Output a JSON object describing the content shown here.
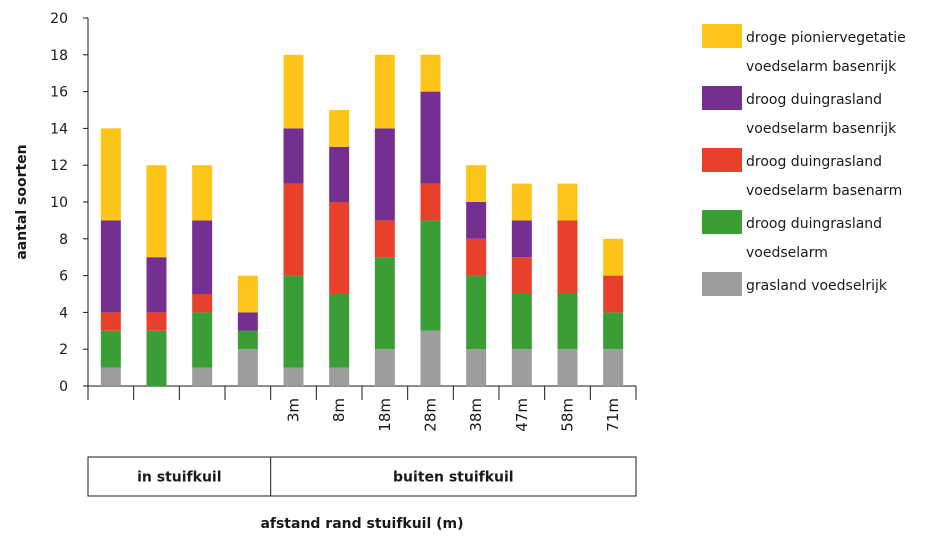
{
  "chart_data": {
    "type": "bar",
    "stacked": true,
    "categories": [
      "",
      "",
      "",
      "",
      "3m",
      "8m",
      "18m",
      "28m",
      "38m",
      "47m",
      "58m",
      "71m"
    ],
    "series": [
      {
        "name": "grasland voedselrijk",
        "color": "#9d9d9d",
        "values": [
          1,
          0,
          1,
          2,
          1,
          1,
          2,
          3,
          2,
          2,
          2,
          2
        ]
      },
      {
        "name": "droog duingrasland voedselarm",
        "color": "#3a9d35",
        "values": [
          2,
          3,
          3,
          1,
          5,
          4,
          5,
          6,
          4,
          3,
          3,
          2
        ]
      },
      {
        "name": "droog duingrasland voedselarm basenarm",
        "color": "#e8412b",
        "values": [
          1,
          1,
          1,
          0,
          5,
          5,
          2,
          2,
          2,
          2,
          4,
          2
        ]
      },
      {
        "name": "droog duingrasland voedselarm basenrijk",
        "color": "#74308f",
        "values": [
          5,
          3,
          4,
          1,
          3,
          3,
          5,
          5,
          2,
          2,
          0,
          0
        ]
      },
      {
        "name": "droge pioniervegetatie voedselarm basenrijk",
        "color": "#fdc519",
        "values": [
          5,
          5,
          3,
          2,
          4,
          2,
          4,
          2,
          2,
          2,
          2,
          2
        ]
      }
    ],
    "legend": {
      "position": "right",
      "entries": [
        {
          "line1": "droge pioniervegetatie",
          "line2": "voedselarm basenrijk",
          "color": "#fdc519"
        },
        {
          "line1": "droog duingrasland",
          "line2": "voedselarm basenrijk",
          "color": "#74308f"
        },
        {
          "line1": "droog duingrasland",
          "line2": "voedselarm basenarm",
          "color": "#e8412b"
        },
        {
          "line1": "droog duingrasland",
          "line2": "voedselarm",
          "color": "#3a9d35"
        },
        {
          "line1": "grasland voedselrijk",
          "line2": "",
          "color": "#9d9d9d"
        }
      ]
    },
    "ylabel": "aantal soorten",
    "xlabel": "afstand rand stuifkuil (m)",
    "ylim": [
      0,
      20
    ],
    "yticks": [
      0,
      2,
      4,
      6,
      8,
      10,
      12,
      14,
      16,
      18,
      20
    ],
    "groups": [
      {
        "label": "in stuifkuil",
        "span": 4
      },
      {
        "label": "buiten stuifkuil",
        "span": 8
      }
    ],
    "grid": false
  }
}
